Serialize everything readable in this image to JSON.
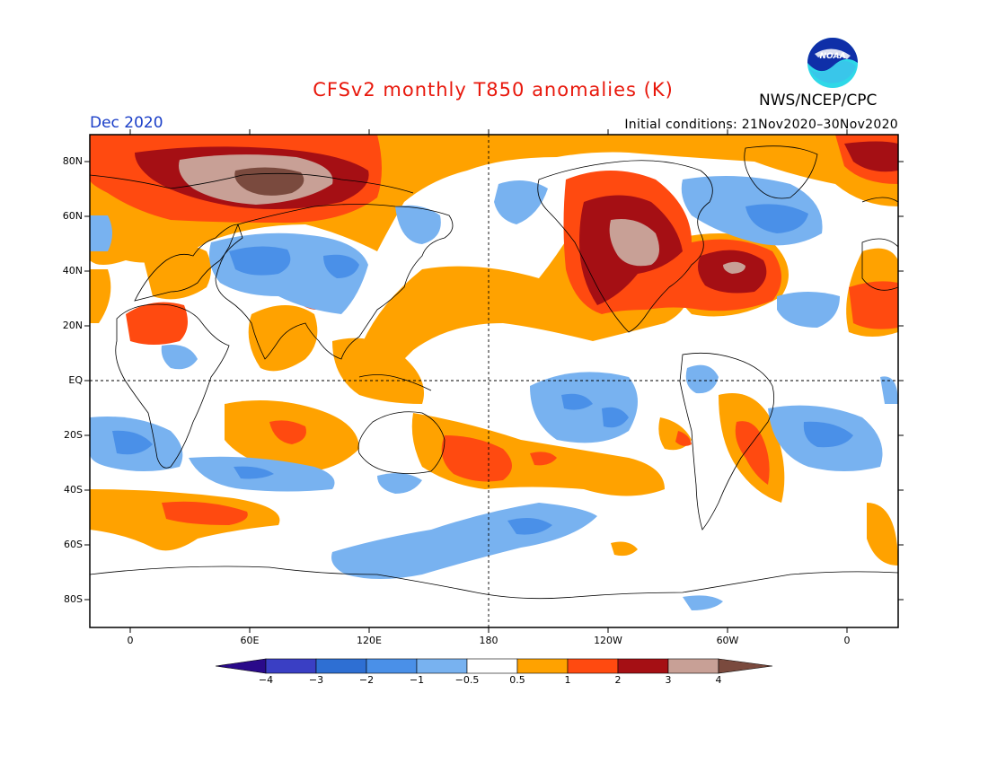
{
  "title": "CFSv2 monthly T850 anomalies (K)",
  "month": "Dec 2020",
  "initial_conditions": "Initial conditions: 21Nov2020–30Nov2020",
  "agency": "NWS/NCEP/CPC",
  "logo_text": "NOAA",
  "colors": {
    "title": "#e8170b",
    "month": "#1a3ec8",
    "frame": "#000000"
  },
  "lat_labels": [
    "80N",
    "60N",
    "40N",
    "20N",
    "EQ",
    "20S",
    "40S",
    "60S",
    "80S"
  ],
  "lon_labels": [
    "0",
    "60E",
    "120E",
    "180",
    "120W",
    "60W",
    "0"
  ],
  "colorbar": {
    "labels": [
      "−4",
      "−3",
      "−2",
      "−1",
      "−0.5",
      "0.5",
      "1",
      "2",
      "3",
      "4"
    ],
    "colors": [
      "#2a0a8a",
      "#3a3fc4",
      "#2e6fd3",
      "#4a90e8",
      "#78b2f0",
      "#ffffff",
      "#ffa200",
      "#ff4a10",
      "#a50f14",
      "#c8a096",
      "#7a4a3e"
    ]
  }
}
